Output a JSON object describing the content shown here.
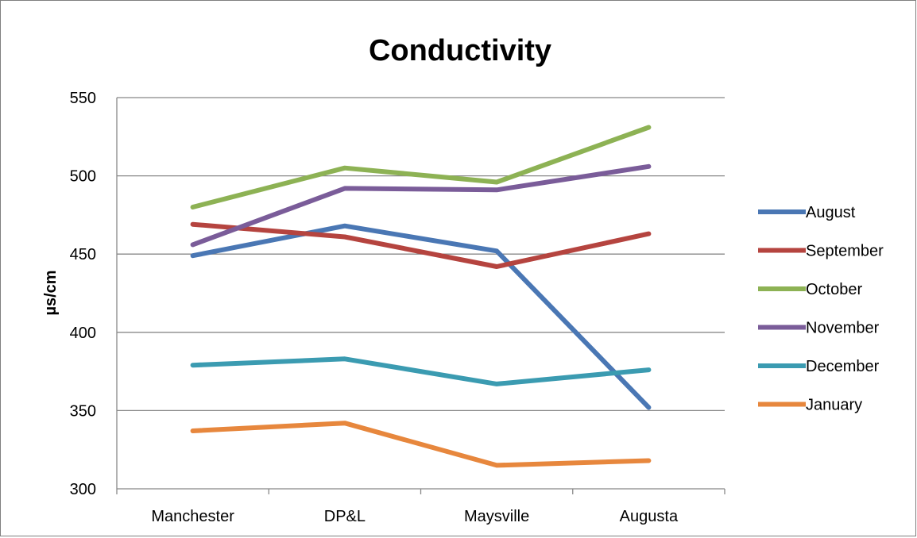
{
  "chart_data": {
    "type": "line",
    "title": "Conductivity",
    "xlabel": "",
    "ylabel": "µs/cm",
    "categories": [
      "Manchester",
      "DP&L",
      "Maysville",
      "Augusta"
    ],
    "ylim": [
      300,
      550
    ],
    "yticks": [
      300,
      350,
      400,
      450,
      500,
      550
    ],
    "grid": true,
    "legend_position": "right",
    "series": [
      {
        "name": "August",
        "color": "#4a77b4",
        "values": [
          449,
          468,
          452,
          352
        ]
      },
      {
        "name": "September",
        "color": "#b5443f",
        "values": [
          469,
          461,
          442,
          463
        ]
      },
      {
        "name": "October",
        "color": "#8db254",
        "values": [
          480,
          505,
          496,
          531
        ]
      },
      {
        "name": "November",
        "color": "#7a5c99",
        "values": [
          456,
          492,
          491,
          506
        ]
      },
      {
        "name": "December",
        "color": "#3b9bb1",
        "values": [
          379,
          383,
          367,
          376
        ]
      },
      {
        "name": "January",
        "color": "#e7873d",
        "values": [
          337,
          342,
          315,
          318
        ]
      }
    ]
  }
}
